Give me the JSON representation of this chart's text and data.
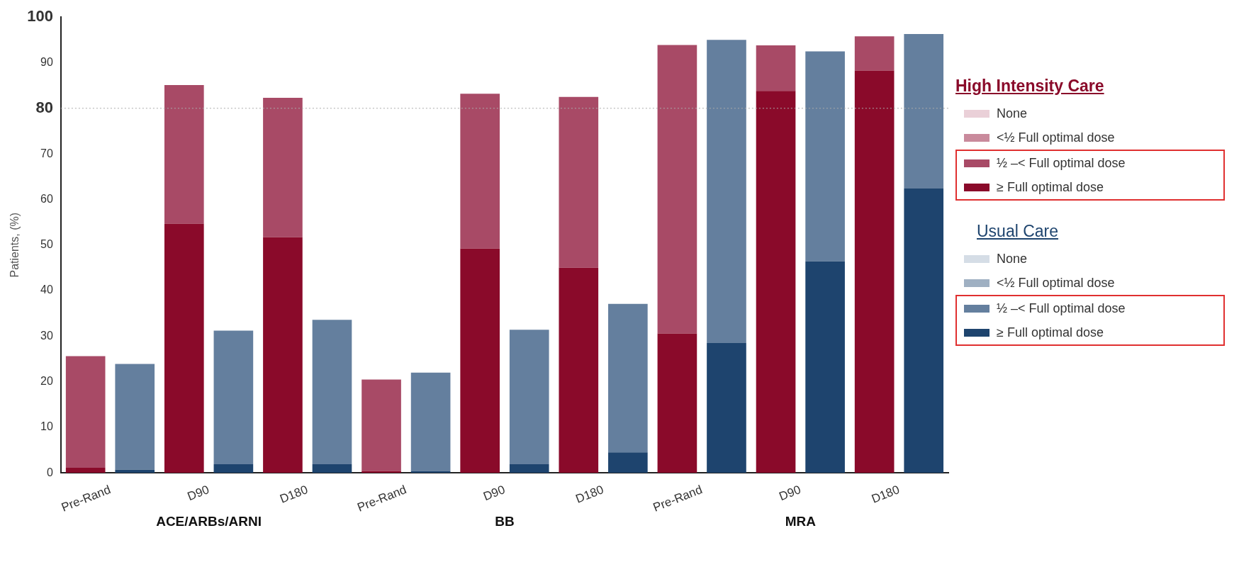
{
  "chart_data": {
    "type": "bar",
    "stacked": true,
    "ylabel": "Patients, (%)",
    "categories": [
      "Pre-Rand",
      null,
      "D90",
      null,
      "D180",
      null,
      "Pre-Rand",
      null,
      "D90",
      null,
      "D180",
      null,
      "Pre-Rand",
      null,
      "D90",
      null,
      "D180",
      null
    ],
    "annotations": [
      "ACE/ARBs/ARNI",
      "BB",
      "MRA"
    ],
    "legend_title": [
      "High Intensity Care",
      "Usual Care"
    ],
    "series": [
      {
        "name": "≥ Full optimal dose",
        "color": "#8a0a2a",
        "values": [
          1.1,
          null,
          54.7,
          null,
          51.7,
          null,
          0.4,
          null,
          49.2,
          null,
          45.0,
          null,
          30.6,
          null,
          83.8,
          null,
          88.3,
          null
        ]
      },
      {
        "name": "½ –< Full optimal dose",
        "color": "#a84a66",
        "values": [
          24.5,
          null,
          30.4,
          null,
          30.6,
          null,
          20.1,
          null,
          34.0,
          null,
          37.5,
          null,
          63.3,
          null,
          10.0,
          null,
          7.5,
          null
        ]
      },
      {
        "name": "<½ Full optimal dose",
        "color": "#c98a9c",
        "values": [
          null,
          null,
          null,
          null,
          null,
          null,
          null,
          null,
          null,
          null,
          null,
          null,
          null,
          null,
          null,
          null,
          null,
          null
        ]
      },
      {
        "name": "None",
        "color": "#ead0d8",
        "values": [
          null,
          null,
          null,
          null,
          null,
          null,
          null,
          null,
          null,
          null,
          null,
          null,
          null,
          null,
          null,
          null,
          null,
          null
        ]
      },
      {
        "name": "≥ Full optimal dose",
        "color": "#1e446e",
        "values": [
          null,
          0.7,
          null,
          1.9,
          null,
          1.9,
          null,
          0.4,
          null,
          1.9,
          null,
          4.5,
          null,
          28.5,
          null,
          46.4,
          null,
          62.4
        ]
      },
      {
        "name": "½ –< Full optimal dose",
        "color": "#647f9e",
        "values": [
          null,
          23.2,
          null,
          29.3,
          null,
          31.7,
          null,
          21.6,
          null,
          29.5,
          null,
          32.6,
          null,
          66.5,
          null,
          46.1,
          null,
          33.9
        ]
      },
      {
        "name": "<½ Full optimal dose",
        "color": "#9fb0c2",
        "values": [
          null,
          null,
          null,
          null,
          null,
          null,
          null,
          null,
          null,
          null,
          null,
          null,
          null,
          null,
          null,
          null,
          null,
          null
        ]
      },
      {
        "name": "None",
        "color": "#d5dde6",
        "values": [
          null,
          null,
          null,
          null,
          null,
          null,
          null,
          null,
          null,
          null,
          null,
          null,
          null,
          null,
          null,
          null,
          null,
          null
        ]
      }
    ],
    "ylim": [
      0,
      100
    ],
    "yticks": [
      0,
      10,
      20,
      30,
      40,
      50,
      60,
      70,
      80,
      90,
      100
    ],
    "ref_lines": [
      {
        "axis": "y",
        "value": 80,
        "color": "#aaaaaa",
        "line_style": "dotted"
      }
    ],
    "grid": false,
    "legend": "right"
  }
}
